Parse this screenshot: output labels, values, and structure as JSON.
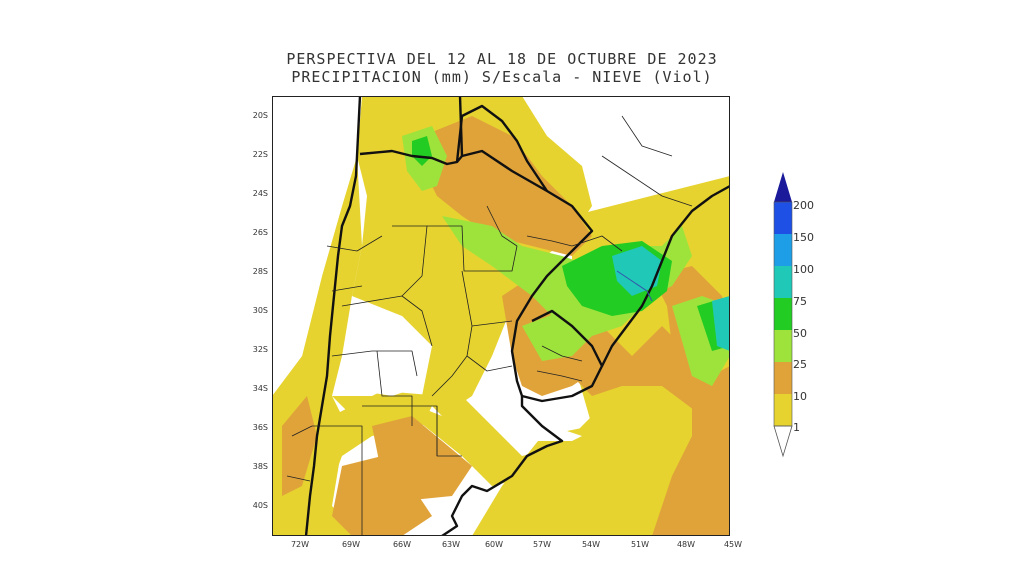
{
  "title": {
    "line1": "PERSPECTIVA DEL 12 AL 18 DE OCTUBRE DE 2023",
    "line2": "PRECIPITACION (mm) S/Escala - NIEVE (Viol)"
  },
  "latitude_labels": [
    "20S",
    "22S",
    "24S",
    "26S",
    "28S",
    "30S",
    "32S",
    "34S",
    "36S",
    "38S",
    "40S"
  ],
  "longitude_labels": [
    "72W",
    "69W",
    "66W",
    "63W",
    "60W",
    "57W",
    "54W",
    "51W",
    "48W",
    "45W"
  ],
  "legend": {
    "levels": [
      "1",
      "10",
      "25",
      "50",
      "75",
      "100",
      "150",
      "200"
    ],
    "colors": [
      "#e6d32f",
      "#e0a33a",
      "#9ee33c",
      "#22cc22",
      "#20c8b8",
      "#1e9ee6",
      "#1e50e6",
      "#1a1a9a"
    ]
  },
  "colors": {
    "background": "#ffffff",
    "yellow": "#e6d32f",
    "orange": "#e0a33a",
    "light_green": "#9ee33c",
    "green": "#22cc22",
    "cyan": "#20c8b8",
    "borders": "#111111"
  }
}
